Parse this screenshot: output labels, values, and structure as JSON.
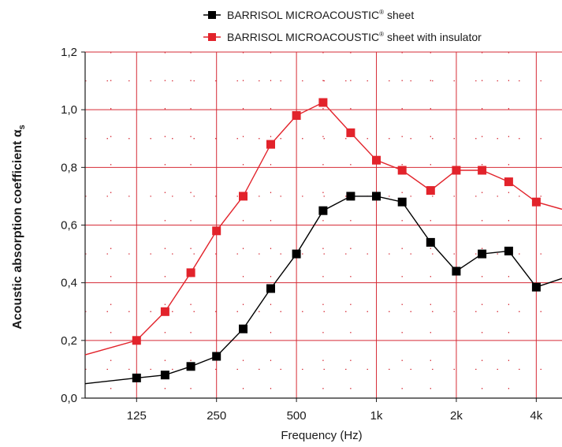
{
  "chart_data": {
    "type": "line",
    "xlabel": "Frequency (Hz)",
    "ylabel": "Acoustic absorption coefficient α",
    "ylabel_sub": "s",
    "ylim": [
      0.0,
      1.2
    ],
    "y_ticks": [
      "0,0",
      "0,2",
      "0,4",
      "0,6",
      "0,8",
      "1,0",
      "1,2"
    ],
    "x_scale": "log",
    "x_ticks": [
      {
        "value": 125,
        "label": "125"
      },
      {
        "value": 250,
        "label": "250"
      },
      {
        "value": 500,
        "label": "500"
      },
      {
        "value": 1000,
        "label": "1k"
      },
      {
        "value": 2000,
        "label": "2k"
      },
      {
        "value": 4000,
        "label": "4k"
      }
    ],
    "x_minor_ticks": [
      100,
      160,
      200,
      315,
      400,
      630,
      800,
      1250,
      1600,
      2500,
      3150,
      5000
    ],
    "xlim": [
      80,
      5000
    ],
    "grid": true,
    "legend_position": "top-center",
    "series": [
      {
        "name_prefix": "BARRISOL MICROACOUSTIC",
        "name_sup": "®",
        "name_suffix": " sheet",
        "color": "#000000",
        "marker": "square",
        "x": [
          80,
          125,
          160,
          200,
          250,
          315,
          400,
          500,
          630,
          800,
          1000,
          1250,
          1600,
          2000,
          2500,
          3150,
          4000,
          5000
        ],
        "y": [
          0.05,
          0.07,
          0.08,
          0.11,
          0.145,
          0.24,
          0.38,
          0.5,
          0.65,
          0.7,
          0.7,
          0.68,
          0.54,
          0.44,
          0.5,
          0.51,
          0.385,
          0.415
        ]
      },
      {
        "name_prefix": "BARRISOL MICROACOUSTIC",
        "name_sup": "®",
        "name_suffix": " sheet with insulator",
        "color": "#e2232b",
        "marker": "square",
        "x": [
          80,
          125,
          160,
          200,
          250,
          315,
          400,
          500,
          630,
          800,
          1000,
          1250,
          1600,
          2000,
          2500,
          3150,
          4000,
          5000
        ],
        "y": [
          0.15,
          0.2,
          0.3,
          0.435,
          0.58,
          0.7,
          0.88,
          0.98,
          1.025,
          0.92,
          0.825,
          0.79,
          0.72,
          0.79,
          0.79,
          0.75,
          0.68,
          0.655
        ]
      }
    ]
  },
  "colors": {
    "grid": "#d62b36",
    "axis": "#1a1a1a"
  }
}
